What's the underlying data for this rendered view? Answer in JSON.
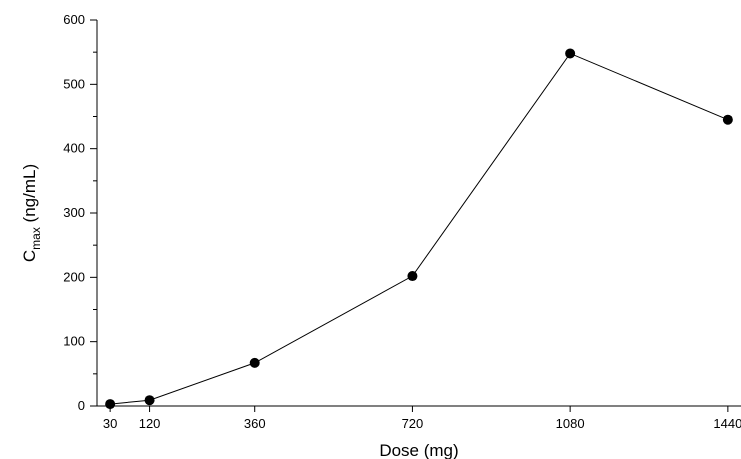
{
  "chart_data": {
    "type": "line",
    "xlabel": "Dose (mg)",
    "ylabel": {
      "main": "C",
      "subscript": "max",
      "unit": " (ng/mL)"
    },
    "x_ticks": [
      "30",
      "120",
      "360",
      "720",
      "1080",
      "1440"
    ],
    "y_ticks": [
      "0",
      "100",
      "200",
      "300",
      "400",
      "500",
      "600"
    ],
    "xlim": [
      0,
      1470
    ],
    "ylim": [
      0,
      600
    ],
    "grid": false,
    "series": [
      {
        "x": [
          30,
          120,
          360,
          720,
          1080,
          1440
        ],
        "y": [
          3,
          9,
          67,
          202,
          548,
          445
        ]
      }
    ]
  }
}
